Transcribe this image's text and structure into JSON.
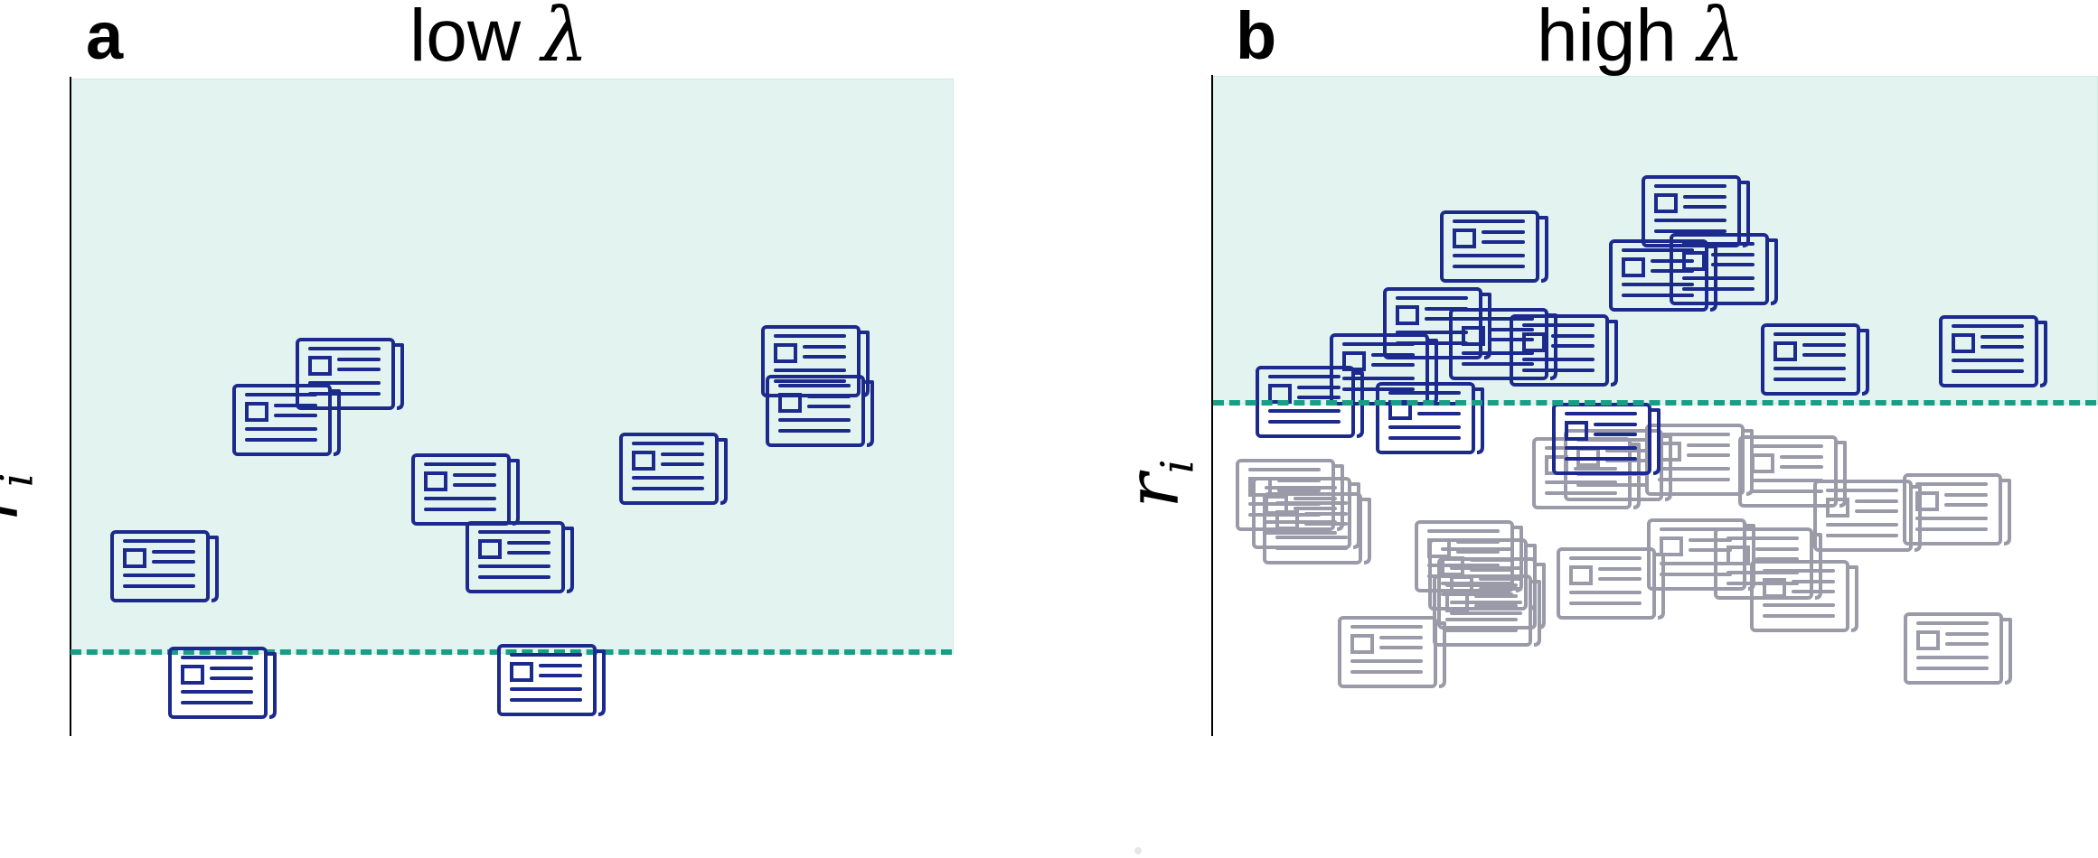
{
  "panels": [
    {
      "letter": "a",
      "title_prefix": "low ",
      "title_symbol": "λ",
      "y_label_main": "r",
      "y_label_sub": "i"
    },
    {
      "letter": "b",
      "title_prefix": "high ",
      "title_symbol": "λ",
      "y_label_main": "r",
      "y_label_sub": "i"
    }
  ],
  "colors": {
    "selected_doc": "#1b2a8c",
    "unselected_doc": "#9a9aa8",
    "region_fill": "#e3f3f0",
    "threshold_line": "#179e87"
  },
  "icons": {
    "document": "newspaper-icon"
  }
}
